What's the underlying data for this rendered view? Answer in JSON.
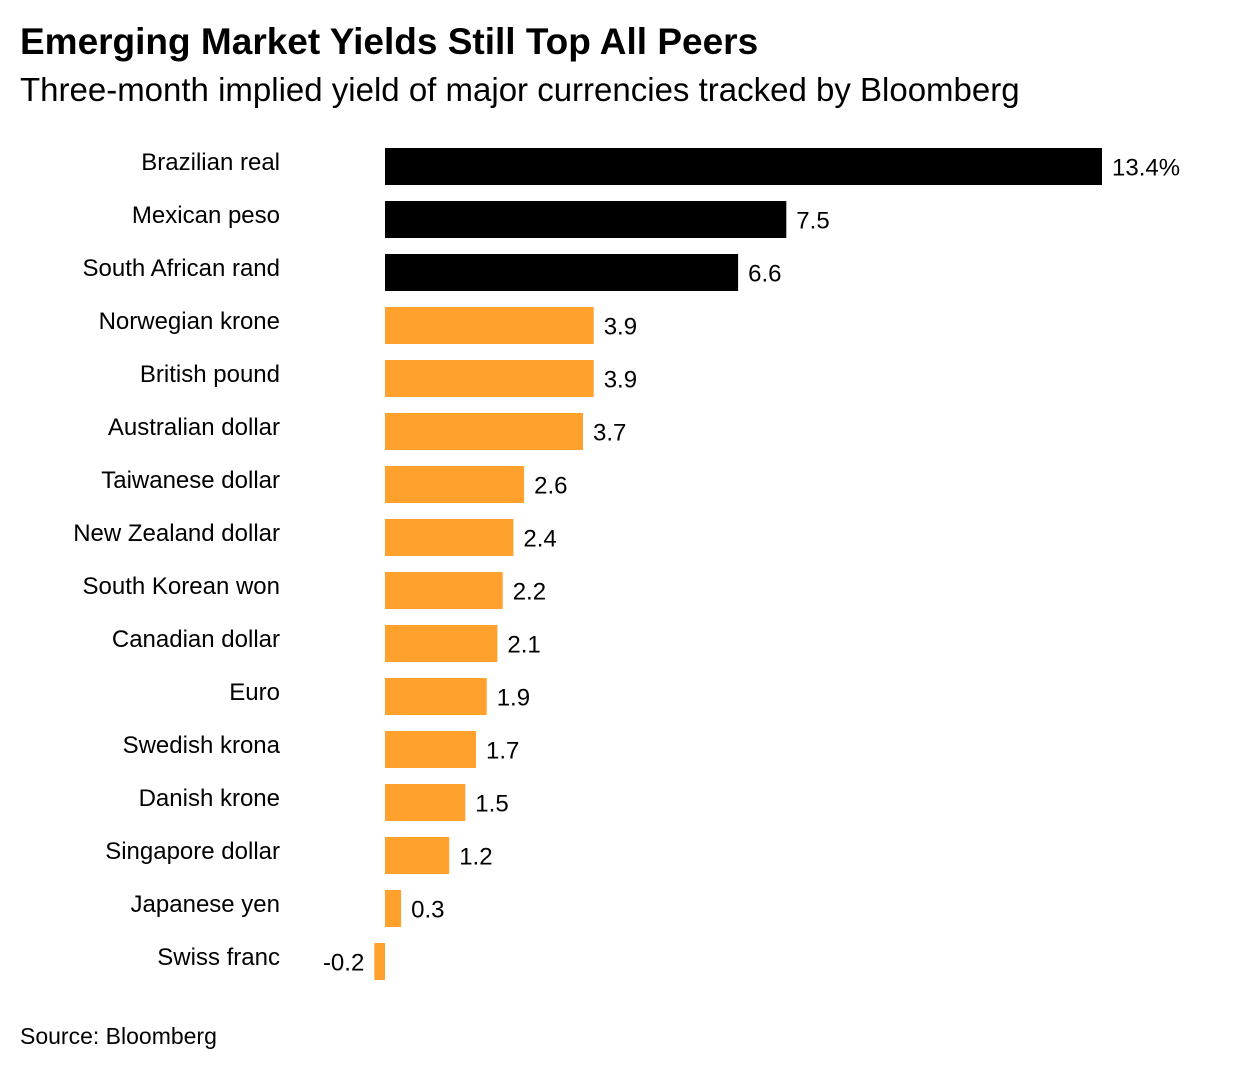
{
  "header": {
    "title": "Emerging Market Yields Still Top All Peers",
    "subtitle": "Three-month implied yield of major currencies tracked by Bloomberg"
  },
  "footer": {
    "source": "Source: Bloomberg"
  },
  "colors": {
    "emerging": "#000000",
    "developed": "#FFA12C"
  },
  "chart_data": {
    "type": "bar",
    "orientation": "horizontal",
    "title": "Emerging Market Yields Still Top All Peers",
    "subtitle": "Three-month implied yield of major currencies tracked by Bloomberg",
    "xlabel": "",
    "ylabel": "",
    "unit": "%",
    "grid": false,
    "categories": [
      "Brazilian real",
      "Mexican peso",
      "South African rand",
      "Norwegian krone",
      "British pound",
      "Australian dollar",
      "Taiwanese dollar",
      "New Zealand dollar",
      "South Korean won",
      "Canadian dollar",
      "Euro",
      "Swedish krona",
      "Danish krone",
      "Singapore dollar",
      "Japanese yen",
      "Swiss franc"
    ],
    "values": [
      13.4,
      7.5,
      6.6,
      3.9,
      3.9,
      3.7,
      2.6,
      2.4,
      2.2,
      2.1,
      1.9,
      1.7,
      1.5,
      1.2,
      0.3,
      -0.2
    ],
    "value_labels": [
      "13.4%",
      "7.5",
      "6.6",
      "3.9",
      "3.9",
      "3.7",
      "2.6",
      "2.4",
      "2.2",
      "2.1",
      "1.9",
      "1.7",
      "1.5",
      "1.2",
      "0.3",
      "-0.2"
    ],
    "bar_colors": [
      "#000000",
      "#000000",
      "#000000",
      "#FFA12C",
      "#FFA12C",
      "#FFA12C",
      "#FFA12C",
      "#FFA12C",
      "#FFA12C",
      "#FFA12C",
      "#FFA12C",
      "#FFA12C",
      "#FFA12C",
      "#FFA12C",
      "#FFA12C",
      "#FFA12C"
    ],
    "xlim": [
      -0.2,
      13.4
    ]
  }
}
